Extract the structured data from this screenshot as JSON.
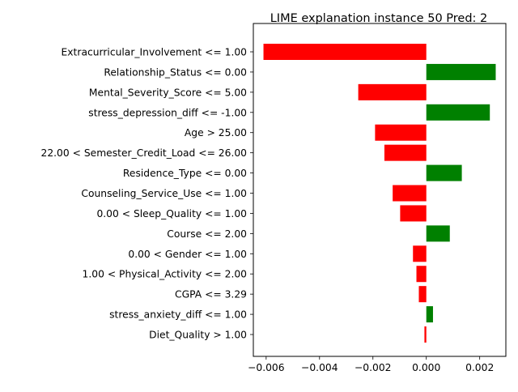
{
  "chart_data": {
    "type": "bar",
    "orientation": "horizontal",
    "title": "LIME explanation instance 50 Pred: 2",
    "xlabel": "",
    "ylabel": "",
    "xlim": [
      -0.00648,
      0.00298
    ],
    "xticks": [
      -0.006,
      -0.004,
      -0.002,
      0.0,
      0.002
    ],
    "xtick_labels": [
      "−0.006",
      "−0.004",
      "−0.002",
      "0.000",
      "0.002"
    ],
    "grid": false,
    "positive_color": "#008000",
    "negative_color": "#ff0000",
    "categories": [
      "Extracurricular_Involvement <= 1.00",
      "Relationship_Status <= 0.00",
      "Mental_Severity_Score <= 5.00",
      "stress_depression_diff <= -1.00",
      "Age > 25.00",
      "22.00 < Semester_Credit_Load <= 26.00",
      "Residence_Type <= 0.00",
      "Counseling_Service_Use <= 1.00",
      "0.00 < Sleep_Quality <= 1.00",
      "Course <= 2.00",
      "0.00 < Gender <= 1.00",
      "1.00 < Physical_Activity <= 2.00",
      "CGPA <= 3.29",
      "stress_anxiety_diff <= 1.00",
      "Diet_Quality > 1.00"
    ],
    "values": [
      -0.0061,
      0.0026,
      -0.00255,
      0.00238,
      -0.00192,
      -0.00157,
      0.00133,
      -0.00126,
      -0.00098,
      0.00088,
      -0.0005,
      -0.00037,
      -0.00028,
      0.00025,
      -7e-05
    ]
  }
}
